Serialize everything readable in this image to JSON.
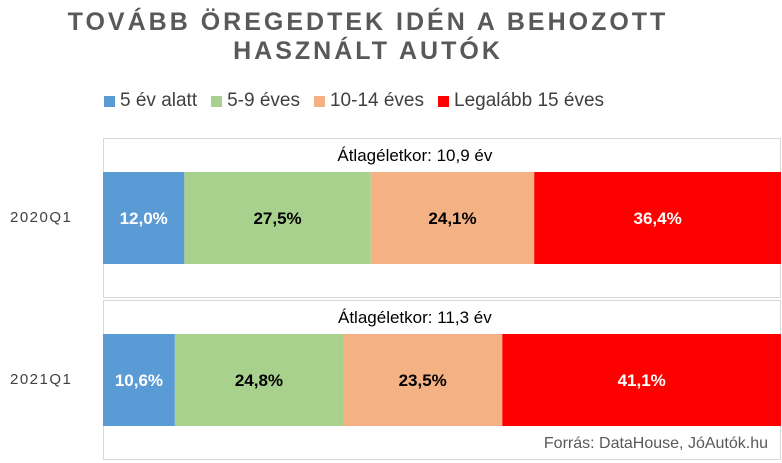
{
  "title_lines": [
    "TOVÁBB ÖREGEDTEK IDÉN A BEHOZOTT",
    "HASZNÁLT AUTÓK"
  ],
  "source": "Forrás: DataHouse, JóAutók.hu",
  "chart_data": {
    "type": "bar",
    "orientation": "horizontal",
    "stacked": true,
    "percent": true,
    "title": "TOVÁBB ÖREGEDTEK IDÉN A BEHOZOTT HASZNÁLT AUTÓK",
    "categories": [
      "2020Q1",
      "2021Q1"
    ],
    "annotations": [
      "Átlagéletkor: 10,9 év",
      "Átlagéletkor: 11,3 év"
    ],
    "series": [
      {
        "name": "5 év alatt",
        "values": [
          12.0,
          10.6
        ],
        "labels": [
          "12,0%",
          "10,6%"
        ],
        "color": "#5b9bd5",
        "label_color": "#ffffff"
      },
      {
        "name": "5-9 éves",
        "values": [
          27.5,
          24.8
        ],
        "labels": [
          "27,5%",
          "24,8%"
        ],
        "color": "#a9d18e",
        "label_color": "#000000"
      },
      {
        "name": "10-14 éves",
        "values": [
          24.1,
          23.5
        ],
        "labels": [
          "24,1%",
          "23,5%"
        ],
        "color": "#f4b183",
        "label_color": "#000000"
      },
      {
        "name": "Legalább 15 éves",
        "values": [
          36.4,
          41.1
        ],
        "labels": [
          "36,4%",
          "41,1%"
        ],
        "color": "#ff0000",
        "label_color": "#ffffff"
      }
    ],
    "xlim": [
      0,
      100
    ],
    "legend_position": "top",
    "grid": false
  }
}
